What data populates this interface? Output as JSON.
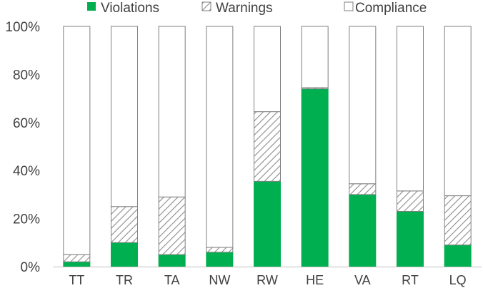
{
  "chart_data": {
    "type": "bar",
    "stacked": true,
    "percent_stacked": true,
    "categories": [
      "TT",
      "TR",
      "TA",
      "NW",
      "RW",
      "HE",
      "VA",
      "RT",
      "LQ"
    ],
    "series": [
      {
        "name": "Violations",
        "values": [
          2,
          10,
          5,
          6,
          35.5,
          74,
          30,
          23,
          9
        ],
        "fill": "#00b050",
        "pattern": "solid"
      },
      {
        "name": "Warnings",
        "values": [
          3,
          15,
          24,
          2,
          29,
          0.5,
          4.5,
          8.5,
          20.5
        ],
        "fill": "#ffffff",
        "pattern": "diagonal-hatch",
        "hatch_color": "#8c8c8c"
      },
      {
        "name": "Compliance",
        "values": [
          95,
          75,
          71,
          92,
          35.5,
          25.5,
          65.5,
          68.5,
          70.5
        ],
        "fill": "#ffffff",
        "pattern": "solid"
      }
    ],
    "ylim": [
      0,
      100
    ],
    "yticks": [
      "0%",
      "20%",
      "40%",
      "60%",
      "80%",
      "100%"
    ],
    "grid": false,
    "legend_position": "top",
    "bar_outline_color": "#808080",
    "axis_line_color": "#bfbfbf",
    "text_color": "#404040"
  }
}
